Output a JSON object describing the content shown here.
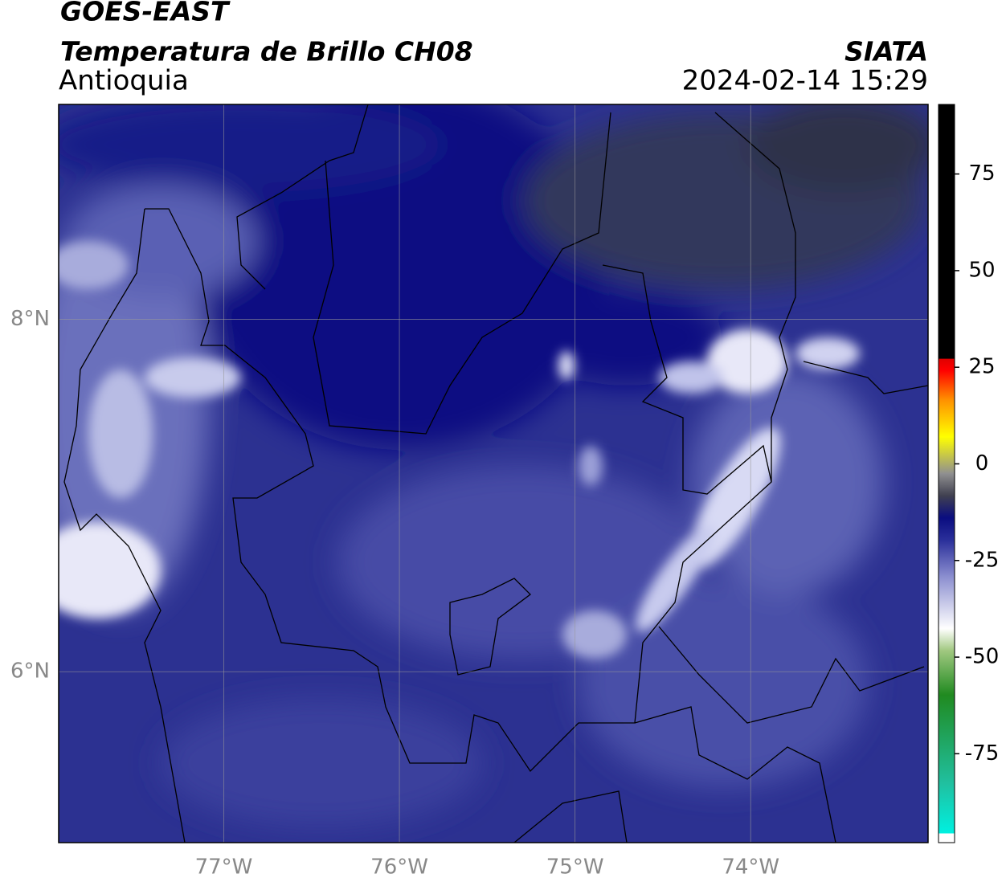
{
  "header": {
    "title": "GOES-EAST",
    "subtitle": "Temperatura de Brillo CH08",
    "region": "Antioquia",
    "source": "SIATA",
    "timestamp": "2024-02-14 15:29"
  },
  "map": {
    "xlim": [
      -77.94,
      -72.99
    ],
    "ylim": [
      5.03,
      9.22
    ],
    "xticks": [
      {
        "value": -77,
        "label": "77°W"
      },
      {
        "value": -76,
        "label": "76°W"
      },
      {
        "value": -75,
        "label": "75°W"
      },
      {
        "value": -74,
        "label": "74°W"
      }
    ],
    "yticks": [
      {
        "value": 6,
        "label": "6°N"
      },
      {
        "value": 8,
        "label": "8°N"
      }
    ],
    "grid": true
  },
  "colorbar": {
    "lim": [
      -98,
      93
    ],
    "ticks": [
      -75,
      -50,
      -25,
      0,
      25,
      50,
      75
    ]
  }
}
